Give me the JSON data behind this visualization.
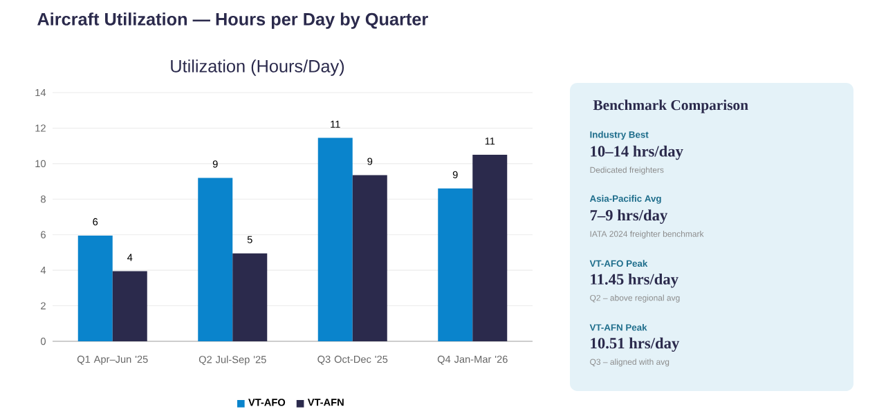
{
  "chart_data": [
    {
      "type": "bar",
      "title": "Aircraft Utilization — Hours per Day by Quarter",
      "subtitle": "Utilization (Hours/Day)",
      "categories": [
        "Q1 Apr–Jun '25",
        "Q2 Jul-Sep '25",
        "Q3 Oct-Dec '25",
        "Q4 Jan-Mar '26"
      ],
      "series": [
        {
          "name": "VT-AFO",
          "color": "#0a84cc",
          "values": [
            5.95,
            9.2,
            11.45,
            8.6
          ],
          "value_labels": [
            "6",
            "9",
            "11",
            "9"
          ]
        },
        {
          "name": "VT-AFN",
          "color": "#2b2a4c",
          "values": [
            3.95,
            4.95,
            9.35,
            10.5
          ],
          "value_labels": [
            "4",
            "5",
            "9",
            "11"
          ]
        }
      ],
      "ylim": [
        0,
        14
      ],
      "yticks": [
        0,
        2,
        4,
        6,
        8,
        10,
        12,
        14
      ],
      "grid": "y",
      "legend": "bottom"
    },
    {
      "type": "other",
      "title": "Benchmark Comparison",
      "annotations": [
        "Industry Best",
        "10–14 hrs/day",
        "Dedicated freighters",
        "Asia-Pacific Avg",
        "7–9 hrs/day",
        "IATA 2024 freighter benchmark",
        "VT-AFO Peak",
        "11.45 hrs/day",
        "Q2 – above regional avg",
        "VT-AFN Peak",
        "10.51 hrs/day",
        "Q3 – aligned with avg"
      ]
    }
  ]
}
